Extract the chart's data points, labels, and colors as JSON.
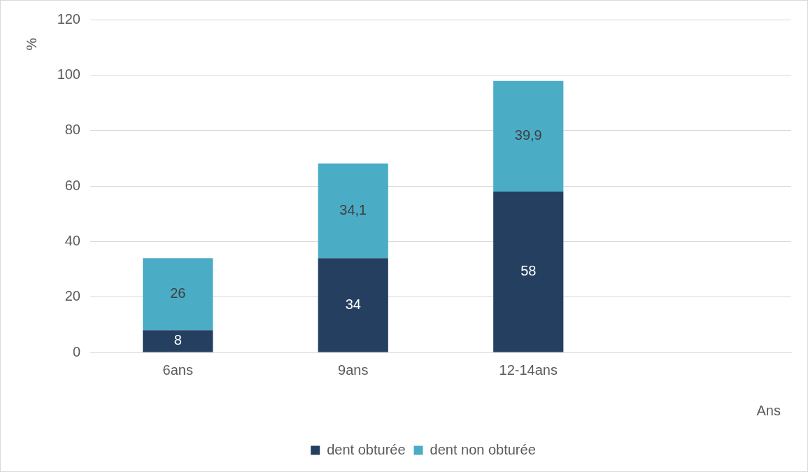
{
  "chart_data": {
    "type": "bar",
    "stacked": true,
    "xlabel": "Ans",
    "ylabel": "%",
    "categories": [
      "6ans",
      "9ans",
      "12-14ans",
      null
    ],
    "series": [
      {
        "name": "dent obturée",
        "color": "#243f60",
        "values": [
          8,
          34,
          58,
          null
        ],
        "value_labels": [
          "8",
          "34",
          "58",
          null
        ]
      },
      {
        "name": "dent non obturée",
        "color": "#4bacc6",
        "values": [
          26,
          34.1,
          39.9,
          null
        ],
        "value_labels": [
          "26",
          "34,1",
          "39,9",
          null
        ]
      }
    ],
    "ylim": [
      0,
      120
    ],
    "yticks": [
      0,
      20,
      40,
      60,
      80,
      100,
      120
    ],
    "grid": "y",
    "legend": "bottom"
  }
}
